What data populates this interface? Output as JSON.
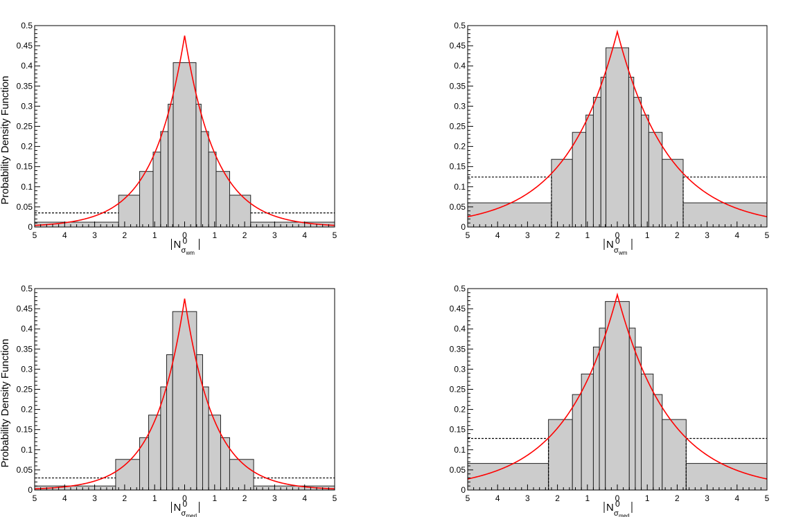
{
  "figure": {
    "ylabel": "Probability Density Function",
    "colors": {
      "histogram_fill": "#cccccc",
      "curve": "#ff0000",
      "frame": "#000000"
    }
  },
  "chart_data": [
    {
      "id": "top-left",
      "type": "bar",
      "xlabel": {
        "symbol": "N",
        "superscript": "0",
        "subscript": "σ",
        "subsub": "wm"
      },
      "xlim": [
        -5,
        5
      ],
      "ylim": [
        0,
        0.5
      ],
      "show_ylabel": true,
      "x_tick_labels": [
        "5",
        "4",
        "3",
        "2",
        "1",
        "0",
        "1",
        "2",
        "3",
        "4",
        "5"
      ],
      "y_tick_labels": [
        "0",
        "0.05",
        "0.1",
        "0.15",
        "0.2",
        "0.25",
        "0.3",
        "0.35",
        "0.4",
        "0.45",
        "0.5"
      ],
      "bins": [
        {
          "x0": -5,
          "x1": -2.2,
          "value": 0.012
        },
        {
          "x0": -2.2,
          "x1": -1.5,
          "value": 0.079
        },
        {
          "x0": -1.5,
          "x1": -1.05,
          "value": 0.138
        },
        {
          "x0": -1.05,
          "x1": -0.8,
          "value": 0.186
        },
        {
          "x0": -0.8,
          "x1": -0.55,
          "value": 0.237
        },
        {
          "x0": -0.55,
          "x1": -0.38,
          "value": 0.305
        },
        {
          "x0": -0.38,
          "x1": 0.38,
          "value": 0.408
        },
        {
          "x0": 0.38,
          "x1": 0.55,
          "value": 0.305
        },
        {
          "x0": 0.55,
          "x1": 0.8,
          "value": 0.237
        },
        {
          "x0": 0.8,
          "x1": 1.05,
          "value": 0.186
        },
        {
          "x0": 1.05,
          "x1": 1.5,
          "value": 0.138
        },
        {
          "x0": 1.5,
          "x1": 2.2,
          "value": 0.079
        },
        {
          "x0": 2.2,
          "x1": 5,
          "value": 0.012
        }
      ],
      "tail_dashed_level": 0.035,
      "dashed_edges": [],
      "curve": {
        "form": "laplace",
        "peak": 0.475,
        "scale": 1.05
      }
    },
    {
      "id": "top-right",
      "type": "bar",
      "xlabel": {
        "symbol": "N",
        "superscript": "0",
        "subscript": "σ",
        "subsub": "wm"
      },
      "xlim": [
        -5,
        5
      ],
      "ylim": [
        0,
        0.5
      ],
      "show_ylabel": false,
      "x_tick_labels": [
        "5",
        "4",
        "3",
        "2",
        "1",
        "0",
        "1",
        "2",
        "3",
        "4",
        "5"
      ],
      "y_tick_labels": [
        "0",
        "0.05",
        "0.1",
        "0.15",
        "0.2",
        "0.25",
        "0.3",
        "0.35",
        "0.4",
        "0.45",
        "0.5"
      ],
      "bins": [
        {
          "x0": -5,
          "x1": -2.2,
          "value": 0.06
        },
        {
          "x0": -2.2,
          "x1": -1.5,
          "value": 0.168
        },
        {
          "x0": -1.5,
          "x1": -1.05,
          "value": 0.235
        },
        {
          "x0": -1.05,
          "x1": -0.8,
          "value": 0.278
        },
        {
          "x0": -0.8,
          "x1": -0.55,
          "value": 0.322
        },
        {
          "x0": -0.55,
          "x1": -0.38,
          "value": 0.372
        },
        {
          "x0": -0.38,
          "x1": 0.38,
          "value": 0.445
        },
        {
          "x0": 0.38,
          "x1": 0.55,
          "value": 0.372
        },
        {
          "x0": 0.55,
          "x1": 0.8,
          "value": 0.322
        },
        {
          "x0": 0.8,
          "x1": 1.05,
          "value": 0.278
        },
        {
          "x0": 1.05,
          "x1": 1.5,
          "value": 0.235
        },
        {
          "x0": 1.5,
          "x1": 2.2,
          "value": 0.168
        },
        {
          "x0": 2.2,
          "x1": 5,
          "value": 0.06
        }
      ],
      "tail_dashed_level": 0.124,
      "dashed_edges": [
        -2.2,
        2.2
      ],
      "curve": {
        "form": "laplace",
        "peak": 0.485,
        "scale": 1.7
      }
    },
    {
      "id": "bottom-left",
      "type": "bar",
      "xlabel": {
        "symbol": "N",
        "superscript": "0",
        "subscript": "σ",
        "subsub": "med"
      },
      "xlim": [
        -5,
        5
      ],
      "ylim": [
        0,
        0.5
      ],
      "show_ylabel": true,
      "x_tick_labels": [
        "5",
        "4",
        "3",
        "2",
        "1",
        "0",
        "1",
        "2",
        "3",
        "4",
        "5"
      ],
      "y_tick_labels": [
        "0",
        "0.05",
        "0.1",
        "0.15",
        "0.2",
        "0.25",
        "0.3",
        "0.35",
        "0.4",
        "0.45",
        "0.5"
      ],
      "bins": [
        {
          "x0": -5,
          "x1": -2.3,
          "value": 0.01
        },
        {
          "x0": -2.3,
          "x1": -1.5,
          "value": 0.076
        },
        {
          "x0": -1.5,
          "x1": -1.2,
          "value": 0.13
        },
        {
          "x0": -1.2,
          "x1": -0.8,
          "value": 0.186
        },
        {
          "x0": -0.8,
          "x1": -0.6,
          "value": 0.256
        },
        {
          "x0": -0.6,
          "x1": -0.4,
          "value": 0.336
        },
        {
          "x0": -0.4,
          "x1": 0.4,
          "value": 0.443
        },
        {
          "x0": 0.4,
          "x1": 0.6,
          "value": 0.336
        },
        {
          "x0": 0.6,
          "x1": 0.8,
          "value": 0.256
        },
        {
          "x0": 0.8,
          "x1": 1.2,
          "value": 0.186
        },
        {
          "x0": 1.2,
          "x1": 1.5,
          "value": 0.13
        },
        {
          "x0": 1.5,
          "x1": 2.3,
          "value": 0.076
        },
        {
          "x0": 2.3,
          "x1": 5,
          "value": 0.01
        }
      ],
      "tail_dashed_level": 0.03,
      "dashed_edges": [],
      "curve": {
        "form": "laplace",
        "peak": 0.475,
        "scale": 0.98
      }
    },
    {
      "id": "bottom-right",
      "type": "bar",
      "xlabel": {
        "symbol": "N",
        "superscript": "0",
        "subscript": "σ",
        "subsub": "med"
      },
      "xlim": [
        -5,
        5
      ],
      "ylim": [
        0,
        0.5
      ],
      "show_ylabel": false,
      "x_tick_labels": [
        "5",
        "4",
        "3",
        "2",
        "1",
        "0",
        "1",
        "2",
        "3",
        "4",
        "5"
      ],
      "y_tick_labels": [
        "0",
        "0.05",
        "0.1",
        "0.15",
        "0.2",
        "0.25",
        "0.3",
        "0.35",
        "0.4",
        "0.45",
        "0.5"
      ],
      "bins": [
        {
          "x0": -5,
          "x1": -2.3,
          "value": 0.066
        },
        {
          "x0": -2.3,
          "x1": -1.5,
          "value": 0.175
        },
        {
          "x0": -1.5,
          "x1": -1.2,
          "value": 0.237
        },
        {
          "x0": -1.2,
          "x1": -0.8,
          "value": 0.288
        },
        {
          "x0": -0.8,
          "x1": -0.6,
          "value": 0.355
        },
        {
          "x0": -0.6,
          "x1": -0.4,
          "value": 0.402
        },
        {
          "x0": -0.4,
          "x1": 0.4,
          "value": 0.468
        },
        {
          "x0": 0.4,
          "x1": 0.6,
          "value": 0.402
        },
        {
          "x0": 0.6,
          "x1": 0.8,
          "value": 0.355
        },
        {
          "x0": 0.8,
          "x1": 1.2,
          "value": 0.288
        },
        {
          "x0": 1.2,
          "x1": 1.5,
          "value": 0.237
        },
        {
          "x0": 1.5,
          "x1": 2.3,
          "value": 0.175
        },
        {
          "x0": 2.3,
          "x1": 5,
          "value": 0.066
        }
      ],
      "tail_dashed_level": 0.128,
      "dashed_edges": [
        -2.3,
        2.3
      ],
      "curve": {
        "form": "laplace",
        "peak": 0.485,
        "scale": 1.74
      }
    }
  ]
}
